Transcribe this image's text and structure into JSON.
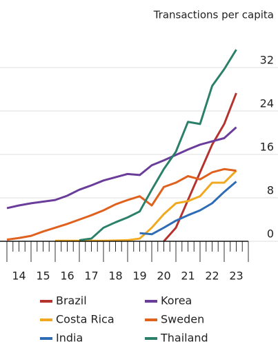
{
  "chart_data": {
    "type": "line",
    "y_axis_label": "Transactions per capita",
    "x": [
      2014,
      2014.5,
      2015,
      2015.5,
      2016,
      2016.5,
      2017,
      2017.5,
      2018,
      2018.5,
      2019,
      2019.5,
      2020,
      2020.5,
      2021,
      2021.5,
      2022,
      2022.5,
      2023,
      2023.5
    ],
    "series": [
      {
        "name": "Brazil",
        "color": "#b5332e",
        "values": [
          null,
          null,
          null,
          null,
          null,
          null,
          null,
          null,
          null,
          null,
          null,
          null,
          null,
          0,
          2.5,
          7.6,
          12.7,
          17.8,
          21.6,
          27.3
        ]
      },
      {
        "name": "Korea",
        "color": "#6a3d9a",
        "values": [
          6.1,
          6.6,
          7,
          7.3,
          7.6,
          8.4,
          9.5,
          10.3,
          11.2,
          11.8,
          12.4,
          12.2,
          14,
          14.9,
          15.9,
          16.9,
          17.8,
          18.4,
          19,
          21
        ]
      },
      {
        "name": "Costa Rica",
        "color": "#f0a81f",
        "values": [
          null,
          null,
          null,
          null,
          0.1,
          0.1,
          0.1,
          0.1,
          0.1,
          0.15,
          0.2,
          0.5,
          2.5,
          5,
          7,
          7.4,
          8.3,
          10.8,
          10.8,
          13
        ]
      },
      {
        "name": "Sweden",
        "color": "#e0601e",
        "values": [
          0.3,
          0.6,
          1,
          1.8,
          2.5,
          3.2,
          4,
          4.8,
          5.7,
          6.8,
          7.6,
          8.3,
          6.6,
          10,
          10.8,
          12,
          11.4,
          12.7,
          13.3,
          13
        ]
      },
      {
        "name": "India",
        "color": "#2e6db5",
        "values": [
          null,
          null,
          null,
          null,
          null,
          null,
          null,
          null,
          null,
          null,
          null,
          1.5,
          1.3,
          2.5,
          3.8,
          4.8,
          5.7,
          7,
          9.1,
          11
        ]
      },
      {
        "name": "Thailand",
        "color": "#2a8068",
        "values": [
          null,
          null,
          null,
          null,
          null,
          null,
          0.2,
          0.5,
          2.5,
          3.5,
          4.4,
          5.5,
          9.5,
          13.3,
          16.5,
          22,
          21.6,
          28.6,
          31.7,
          35.3
        ]
      }
    ],
    "xlim": [
      2014,
      2024
    ],
    "xticks": [
      {
        "value": 2014.5,
        "label": "14"
      },
      {
        "value": 2015.5,
        "label": "15"
      },
      {
        "value": 2016.5,
        "label": "16"
      },
      {
        "value": 2017.5,
        "label": "17"
      },
      {
        "value": 2018.5,
        "label": "18"
      },
      {
        "value": 2019.5,
        "label": "19"
      },
      {
        "value": 2020.5,
        "label": "20"
      },
      {
        "value": 2021.5,
        "label": "21"
      },
      {
        "value": 2022.5,
        "label": "22"
      },
      {
        "value": 2023.5,
        "label": "23"
      }
    ],
    "ylim": [
      0,
      40
    ],
    "yticks": [
      0,
      8,
      16,
      24,
      32
    ],
    "grid": true
  }
}
